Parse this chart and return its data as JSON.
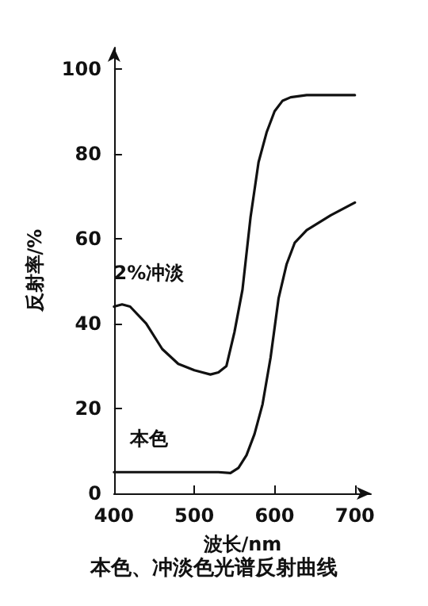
{
  "chart_data": {
    "type": "line",
    "title": "本色、冲淡色光谱反射曲线",
    "xlabel": "波长/nm",
    "ylabel": "反射率/%",
    "xlim": [
      400,
      720
    ],
    "xticks": [
      400,
      500,
      600,
      700
    ],
    "ylim": [
      0,
      105
    ],
    "yticks": [
      0,
      20,
      40,
      60,
      80,
      100
    ],
    "grid": false,
    "marker": "none",
    "line_style": "solid",
    "series": [
      {
        "name": "2%冲淡",
        "color": "#111111",
        "x": [
          400,
          410,
          420,
          440,
          460,
          480,
          500,
          520,
          530,
          540,
          550,
          560,
          570,
          580,
          590,
          600,
          610,
          620,
          640,
          670,
          700
        ],
        "values": [
          44,
          44.5,
          44,
          40,
          34,
          30.5,
          29,
          28,
          28.5,
          30,
          38,
          48,
          65,
          78,
          85,
          90,
          92.5,
          93.3,
          93.8,
          93.8,
          93.8
        ]
      },
      {
        "name": "本色",
        "color": "#111111",
        "x": [
          400,
          450,
          500,
          530,
          545,
          555,
          565,
          575,
          585,
          595,
          605,
          615,
          625,
          640,
          670,
          700
        ],
        "values": [
          5,
          5,
          5,
          5,
          4.8,
          6,
          9,
          14,
          21,
          32,
          46,
          54,
          59,
          62,
          65.5,
          68.5
        ]
      }
    ]
  }
}
